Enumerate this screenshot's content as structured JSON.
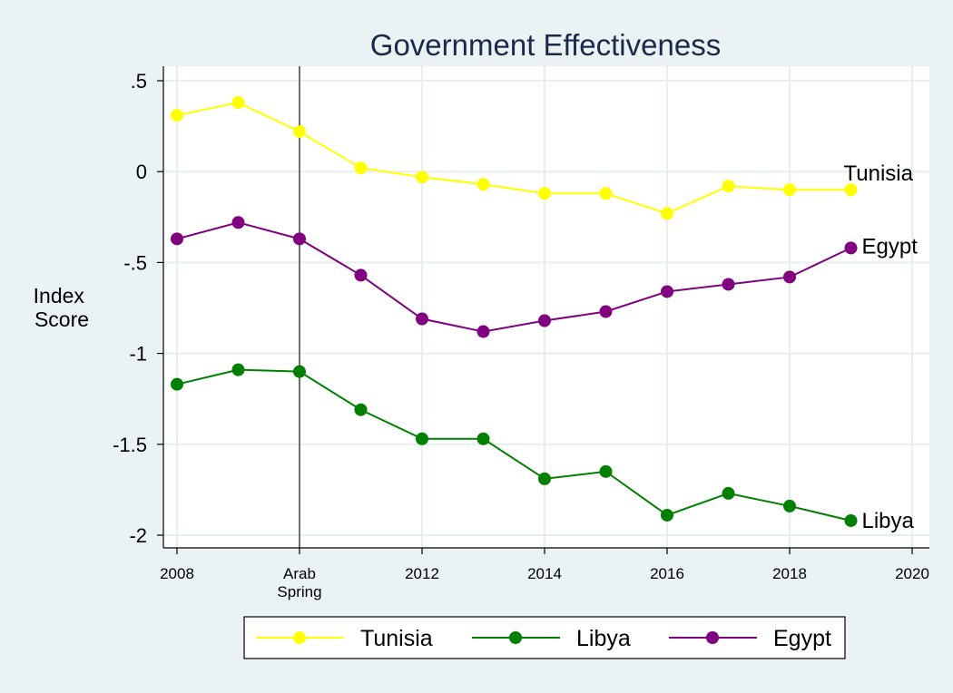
{
  "chart_data": {
    "type": "line",
    "title": "Government Effectiveness",
    "ylabel": [
      "Index",
      "Score"
    ],
    "xlim": [
      2008,
      2020
    ],
    "ylim": [
      -2,
      0.5
    ],
    "x_ticks": [
      {
        "value": 2008,
        "label": [
          "2008"
        ]
      },
      {
        "value": 2010,
        "label": [
          "Arab",
          "Spring"
        ]
      },
      {
        "value": 2012,
        "label": [
          "2012"
        ]
      },
      {
        "value": 2014,
        "label": [
          "2014"
        ]
      },
      {
        "value": 2016,
        "label": [
          "2016"
        ]
      },
      {
        "value": 2018,
        "label": [
          "2018"
        ]
      },
      {
        "value": 2020,
        "label": [
          "2020"
        ]
      }
    ],
    "y_ticks": [
      {
        "value": 0.5,
        "label": ".5"
      },
      {
        "value": 0,
        "label": "0"
      },
      {
        "value": -0.5,
        "label": "-.5"
      },
      {
        "value": -1,
        "label": "-1"
      },
      {
        "value": -1.5,
        "label": "-1.5"
      },
      {
        "value": -2,
        "label": "-2"
      }
    ],
    "vertical_reference_line": 2010,
    "grid": true,
    "legend_position": "bottom",
    "x": [
      2008,
      2009,
      2010,
      2011,
      2012,
      2013,
      2014,
      2015,
      2016,
      2017,
      2018,
      2019
    ],
    "series": [
      {
        "name": "Tunisia",
        "color": "#ffff00",
        "end_label": "Tunisia",
        "values": [
          0.31,
          0.38,
          0.22,
          0.02,
          -0.03,
          -0.07,
          -0.12,
          -0.12,
          -0.23,
          -0.08,
          -0.1,
          -0.1
        ]
      },
      {
        "name": "Libya",
        "color": "#008000",
        "end_label": "Libya",
        "values": [
          -1.17,
          -1.09,
          -1.1,
          -1.31,
          -1.47,
          -1.47,
          -1.69,
          -1.65,
          -1.89,
          -1.77,
          -1.84,
          -1.92
        ]
      },
      {
        "name": "Egypt",
        "color": "#800080",
        "end_label": "Egypt",
        "values": [
          -0.37,
          -0.28,
          -0.37,
          -0.57,
          -0.81,
          -0.88,
          -0.82,
          -0.77,
          -0.66,
          -0.62,
          -0.58,
          -0.42
        ]
      }
    ]
  }
}
